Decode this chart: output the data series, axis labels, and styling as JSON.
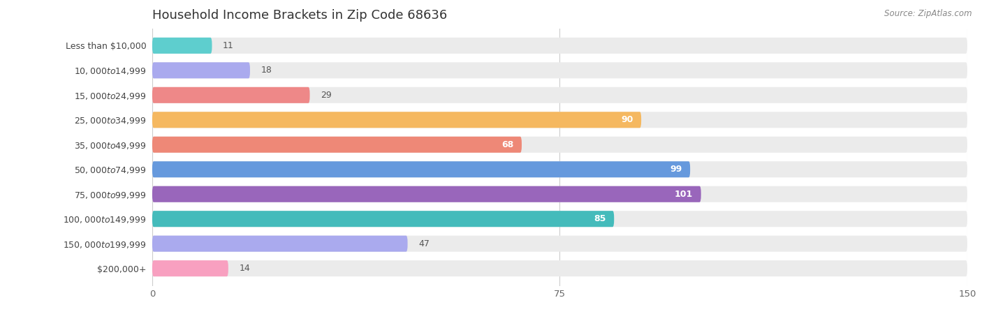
{
  "title": "Household Income Brackets in Zip Code 68636",
  "source": "Source: ZipAtlas.com",
  "categories": [
    "Less than $10,000",
    "$10,000 to $14,999",
    "$15,000 to $24,999",
    "$25,000 to $34,999",
    "$35,000 to $49,999",
    "$50,000 to $74,999",
    "$75,000 to $99,999",
    "$100,000 to $149,999",
    "$150,000 to $199,999",
    "$200,000+"
  ],
  "values": [
    11,
    18,
    29,
    90,
    68,
    99,
    101,
    85,
    47,
    14
  ],
  "bar_colors": [
    "#5ECECE",
    "#AAAAEE",
    "#EE8888",
    "#F5B860",
    "#EE8877",
    "#6699DD",
    "#9966BB",
    "#44BBBB",
    "#AAAAEE",
    "#F8A0C0"
  ],
  "bar_bg_color": "#EBEBEB",
  "xlim": [
    0,
    150
  ],
  "xticks": [
    0,
    75,
    150
  ],
  "background_color": "#FFFFFF",
  "title_fontsize": 13,
  "label_fontsize": 9,
  "value_fontsize": 9,
  "value_inside_threshold": 50
}
